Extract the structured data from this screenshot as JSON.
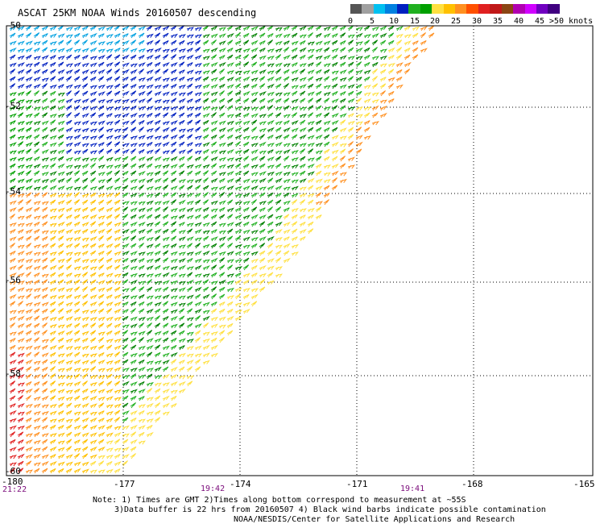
{
  "title": "ASCAT 25KM NOAA Winds 20160507 descending",
  "legend": {
    "labels": [
      "0",
      "5",
      "10",
      "15",
      "20",
      "25",
      "30",
      "35",
      "40",
      "45",
      ">50 knots"
    ],
    "colors": [
      "#555555",
      "#a0a0a0",
      "#00c0f0",
      "#0080e0",
      "#0020c0",
      "#20b020",
      "#00a000",
      "#ffe040",
      "#ffc000",
      "#ff9020",
      "#ff5000",
      "#e02020",
      "#c01818",
      "#8b4513",
      "#b000b0",
      "#d000ff",
      "#7000c0",
      "#400080"
    ]
  },
  "axes": {
    "lat_labels": [
      "-50",
      "-52",
      "-54",
      "-56",
      "-58",
      "-60"
    ],
    "lon_labels": [
      "-180",
      "-177",
      "-174",
      "-171",
      "-168",
      "-165"
    ]
  },
  "times": [
    "21:22",
    "19:42",
    "19:41"
  ],
  "notes": {
    "line1": "Note: 1) Times are GMT 2)Times along bottom correspond to measurement at ~55S",
    "line2": "3)Data buffer is 22 hrs from 20160507 4) Black wind barbs indicate possible contamination",
    "line3": "NOAA/NESDIS/Center for Satellite Applications and Research"
  }
}
